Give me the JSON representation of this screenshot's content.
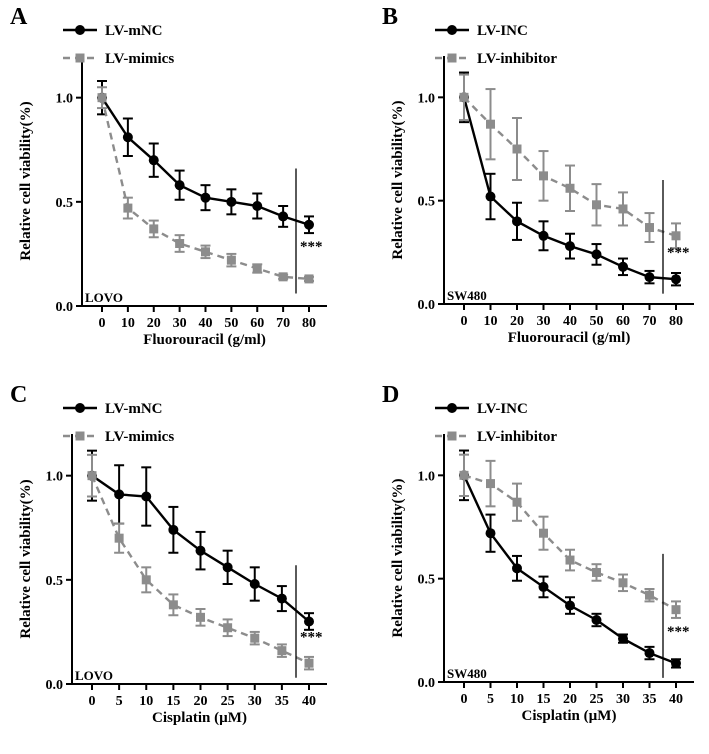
{
  "chart_data": [
    {
      "type": "line",
      "panel_letter": "A",
      "cell_line": "LOVO",
      "xlabel": "Fluorouracil (g/ml)",
      "ylabel": "Relative cell viability(%)",
      "x": [
        0,
        10,
        20,
        30,
        40,
        50,
        60,
        70,
        80
      ],
      "xticks": [
        "0",
        "10",
        "20",
        "30",
        "40",
        "50",
        "60",
        "70",
        "80"
      ],
      "xlim": [
        0,
        80
      ],
      "yticks": [
        "0.0",
        "0.5",
        "1.0"
      ],
      "ylim": [
        0,
        1.2
      ],
      "series": [
        {
          "name": "LV-mNC",
          "style": "solid",
          "color": "#000000",
          "marker": "circle",
          "values": [
            1.0,
            0.81,
            0.7,
            0.58,
            0.52,
            0.5,
            0.48,
            0.43,
            0.39
          ],
          "errors": [
            0.08,
            0.09,
            0.08,
            0.07,
            0.06,
            0.06,
            0.06,
            0.05,
            0.04
          ]
        },
        {
          "name": "LV-mimics",
          "style": "dashed",
          "color": "#8c8c8c",
          "marker": "square",
          "values": [
            1.0,
            0.47,
            0.37,
            0.3,
            0.26,
            0.22,
            0.18,
            0.14,
            0.13
          ],
          "errors": [
            0.05,
            0.05,
            0.04,
            0.04,
            0.03,
            0.03,
            0.02,
            0.01,
            0.01
          ]
        }
      ],
      "significance": "***"
    },
    {
      "type": "line",
      "panel_letter": "B",
      "cell_line": "SW480",
      "xlabel": "Fluorouracil (g/ml)",
      "ylabel": "Relative cell viability(%)",
      "x": [
        0,
        10,
        20,
        30,
        40,
        50,
        60,
        70,
        80
      ],
      "xticks": [
        "0",
        "10",
        "20",
        "30",
        "40",
        "50",
        "60",
        "70",
        "80"
      ],
      "xlim": [
        0,
        80
      ],
      "yticks": [
        "0.0",
        "0.5",
        "1.0"
      ],
      "ylim": [
        0,
        1.2
      ],
      "series": [
        {
          "name": "LV-INC",
          "style": "solid",
          "color": "#000000",
          "marker": "circle",
          "values": [
            1.0,
            0.52,
            0.4,
            0.33,
            0.28,
            0.24,
            0.18,
            0.13,
            0.12
          ],
          "errors": [
            0.12,
            0.11,
            0.09,
            0.07,
            0.06,
            0.05,
            0.04,
            0.03,
            0.03
          ]
        },
        {
          "name": "LV-inhibitor",
          "style": "dashed",
          "color": "#8c8c8c",
          "marker": "square",
          "values": [
            1.0,
            0.87,
            0.75,
            0.62,
            0.56,
            0.48,
            0.46,
            0.37,
            0.33
          ],
          "errors": [
            0.11,
            0.17,
            0.15,
            0.12,
            0.11,
            0.1,
            0.08,
            0.07,
            0.06
          ]
        }
      ],
      "significance": "***"
    },
    {
      "type": "line",
      "panel_letter": "C",
      "cell_line": "LOVO",
      "xlabel": "Cisplatin (µM)",
      "ylabel": "Relative cell viability(%)",
      "x": [
        0,
        5,
        10,
        15,
        20,
        25,
        30,
        35,
        40
      ],
      "xticks": [
        "0",
        "5",
        "10",
        "15",
        "20",
        "25",
        "30",
        "35",
        "40"
      ],
      "xlim": [
        0,
        40
      ],
      "yticks": [
        "0.0",
        "0.5",
        "1.0"
      ],
      "ylim": [
        0,
        1.2
      ],
      "series": [
        {
          "name": "LV-mNC",
          "style": "solid",
          "color": "#000000",
          "marker": "circle",
          "values": [
            1.0,
            0.91,
            0.9,
            0.74,
            0.64,
            0.56,
            0.48,
            0.41,
            0.3
          ],
          "errors": [
            0.12,
            0.14,
            0.14,
            0.11,
            0.09,
            0.08,
            0.08,
            0.06,
            0.04
          ]
        },
        {
          "name": "LV-mimics",
          "style": "dashed",
          "color": "#8c8c8c",
          "marker": "square",
          "values": [
            1.0,
            0.7,
            0.5,
            0.38,
            0.32,
            0.27,
            0.22,
            0.16,
            0.1
          ],
          "errors": [
            0.1,
            0.07,
            0.06,
            0.05,
            0.04,
            0.04,
            0.03,
            0.03,
            0.03
          ]
        }
      ],
      "significance": "***"
    },
    {
      "type": "line",
      "panel_letter": "D",
      "cell_line": "SW480",
      "xlabel": "Cisplatin (µM)",
      "ylabel": "Relative cell viability(%)",
      "x": [
        0,
        5,
        10,
        15,
        20,
        25,
        30,
        35,
        40
      ],
      "xticks": [
        "0",
        "5",
        "10",
        "15",
        "20",
        "25",
        "30",
        "35",
        "40"
      ],
      "xlim": [
        0,
        40
      ],
      "yticks": [
        "0.0",
        "0.5",
        "1.0"
      ],
      "ylim": [
        0,
        1.2
      ],
      "series": [
        {
          "name": "LV-INC",
          "style": "solid",
          "color": "#000000",
          "marker": "circle",
          "values": [
            1.0,
            0.72,
            0.55,
            0.46,
            0.37,
            0.3,
            0.21,
            0.14,
            0.09
          ],
          "errors": [
            0.12,
            0.09,
            0.06,
            0.05,
            0.04,
            0.03,
            0.02,
            0.03,
            0.02
          ]
        },
        {
          "name": "LV-inhibitor",
          "style": "dashed",
          "color": "#8c8c8c",
          "marker": "square",
          "values": [
            1.0,
            0.96,
            0.87,
            0.72,
            0.59,
            0.53,
            0.48,
            0.42,
            0.35
          ],
          "errors": [
            0.1,
            0.11,
            0.09,
            0.08,
            0.05,
            0.04,
            0.04,
            0.03,
            0.04
          ]
        }
      ],
      "significance": "***"
    }
  ]
}
